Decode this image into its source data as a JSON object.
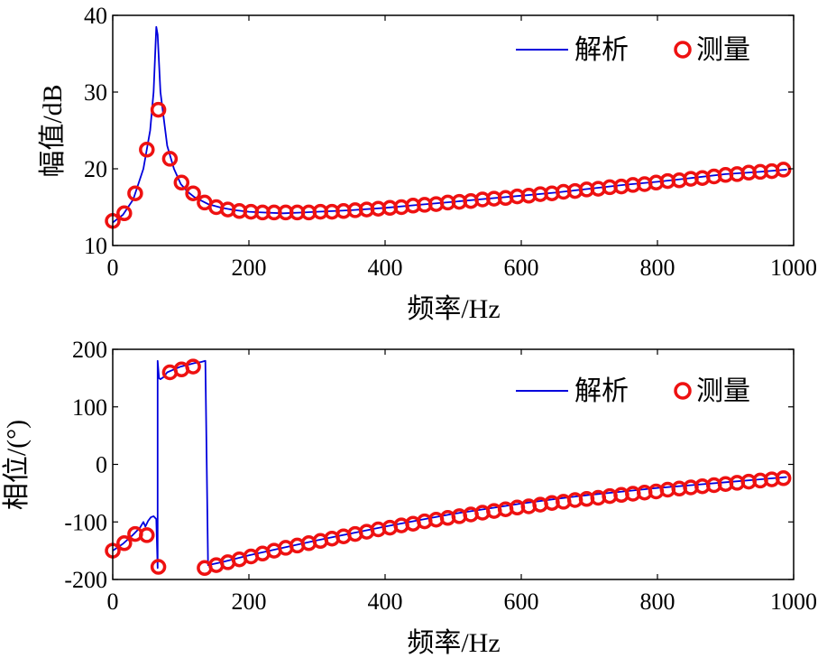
{
  "chart_data": [
    {
      "type": "line",
      "title": "",
      "xlabel": "频率/Hz",
      "ylabel": "幅值/dB",
      "xlim": [
        0,
        1000
      ],
      "ylim": [
        10,
        40
      ],
      "xticks": [
        0,
        200,
        400,
        600,
        800,
        1000
      ],
      "yticks": [
        10,
        20,
        30,
        40
      ],
      "grid": false,
      "legend_position": "top-right",
      "colors": {
        "analytic": "#0000dd",
        "measured": "#ee1111"
      },
      "series": [
        {
          "name": "解析",
          "style": "line",
          "x": [
            0,
            15,
            30,
            45,
            55,
            60,
            64,
            66,
            70,
            80,
            90,
            100,
            110,
            120,
            140,
            160,
            180,
            200,
            220,
            250,
            280,
            300,
            350,
            400,
            450,
            500,
            550,
            600,
            650,
            700,
            750,
            800,
            850,
            900,
            950,
            990
          ],
          "y": [
            13.0,
            14.0,
            16.0,
            20.0,
            25.0,
            30.0,
            38.5,
            37.5,
            30.0,
            23.0,
            20.0,
            18.0,
            17.0,
            16.3,
            15.4,
            14.9,
            14.6,
            14.4,
            14.3,
            14.2,
            14.3,
            14.4,
            14.6,
            14.9,
            15.3,
            15.7,
            16.1,
            16.5,
            16.9,
            17.4,
            17.9,
            18.3,
            18.8,
            19.3,
            19.6,
            19.9
          ]
        },
        {
          "name": "测量",
          "style": "marker",
          "x": [
            0,
            17,
            33,
            50,
            67,
            84,
            101,
            118,
            135,
            152,
            169,
            186,
            203,
            220,
            237,
            254,
            271,
            288,
            305,
            322,
            339,
            356,
            373,
            390,
            407,
            424,
            441,
            458,
            475,
            492,
            509,
            526,
            543,
            560,
            577,
            594,
            611,
            628,
            645,
            662,
            679,
            696,
            713,
            730,
            747,
            764,
            781,
            798,
            815,
            832,
            849,
            866,
            883,
            900,
            917,
            934,
            951,
            968,
            985
          ],
          "y": [
            13.2,
            14.2,
            16.8,
            22.5,
            27.7,
            21.3,
            18.2,
            16.8,
            15.6,
            15.0,
            14.7,
            14.5,
            14.4,
            14.3,
            14.3,
            14.3,
            14.3,
            14.3,
            14.4,
            14.4,
            14.5,
            14.6,
            14.7,
            14.8,
            14.9,
            15.0,
            15.2,
            15.3,
            15.4,
            15.6,
            15.7,
            15.8,
            16.0,
            16.1,
            16.2,
            16.4,
            16.5,
            16.7,
            16.8,
            17.0,
            17.1,
            17.3,
            17.4,
            17.6,
            17.7,
            17.9,
            18.0,
            18.2,
            18.4,
            18.5,
            18.7,
            18.8,
            19.0,
            19.2,
            19.3,
            19.5,
            19.6,
            19.7,
            19.9
          ]
        }
      ]
    },
    {
      "type": "line",
      "title": "",
      "xlabel": "频率/Hz",
      "ylabel": "相位/(°)",
      "xlim": [
        0,
        1000
      ],
      "ylim": [
        -200,
        200
      ],
      "xticks": [
        0,
        200,
        400,
        600,
        800,
        1000
      ],
      "yticks": [
        -200,
        -100,
        0,
        100,
        200
      ],
      "grid": false,
      "legend_position": "top-right",
      "colors": {
        "analytic": "#0000dd",
        "measured": "#ee1111"
      },
      "series": [
        {
          "name": "解析",
          "style": "line",
          "x": [
            0,
            15,
            30,
            40,
            45,
            48,
            52,
            56,
            60,
            64,
            66,
            66,
            68,
            70,
            75,
            80,
            90,
            100,
            110,
            120,
            130,
            136,
            136,
            140,
            160,
            200,
            250,
            300,
            350,
            400,
            450,
            500,
            550,
            600,
            650,
            700,
            750,
            800,
            850,
            900,
            950,
            990
          ],
          "y": [
            -150,
            -138,
            -122,
            -110,
            -100,
            -108,
            -98,
            -92,
            -90,
            -95,
            -180,
            180,
            150,
            148,
            152,
            160,
            165,
            170,
            173,
            176,
            178,
            180,
            180,
            -175,
            -170,
            -158,
            -145,
            -132,
            -120,
            -108,
            -97,
            -86,
            -77,
            -68,
            -60,
            -53,
            -47,
            -41,
            -36,
            -31,
            -26,
            -22
          ]
        },
        {
          "name": "测量",
          "style": "marker",
          "x": [
            0,
            17,
            33,
            50,
            67,
            84,
            101,
            118,
            135,
            152,
            169,
            186,
            203,
            220,
            237,
            254,
            271,
            288,
            305,
            322,
            339,
            356,
            373,
            390,
            407,
            424,
            441,
            458,
            475,
            492,
            509,
            526,
            543,
            560,
            577,
            594,
            611,
            628,
            645,
            662,
            679,
            696,
            713,
            730,
            747,
            764,
            781,
            798,
            815,
            832,
            849,
            866,
            883,
            900,
            917,
            934,
            951,
            968,
            985
          ],
          "y": [
            -150,
            -137,
            -121,
            -123,
            -178,
            160,
            165,
            170,
            -180,
            -175,
            -170,
            -165,
            -160,
            -155,
            -150,
            -145,
            -141,
            -137,
            -133,
            -129,
            -125,
            -121,
            -117,
            -113,
            -110,
            -106,
            -103,
            -99,
            -96,
            -93,
            -90,
            -87,
            -84,
            -81,
            -78,
            -75,
            -73,
            -70,
            -67,
            -65,
            -62,
            -60,
            -58,
            -55,
            -53,
            -51,
            -49,
            -47,
            -44,
            -42,
            -40,
            -38,
            -36,
            -34,
            -32,
            -30,
            -28,
            -26,
            -24
          ]
        }
      ]
    }
  ]
}
